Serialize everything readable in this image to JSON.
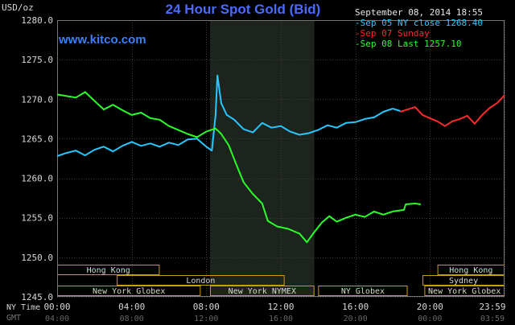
{
  "header": {
    "title": "24 Hour Spot Gold (Bid)",
    "brand": "www.kitco.com",
    "unit": "USD/oz",
    "timestamp": "September 08, 2014 18:55"
  },
  "legend": [
    {
      "text": "-Sep 05 NY close 1268.40",
      "color": "#28c8ff"
    },
    {
      "text": "-Sep 07 Sunday",
      "color": "#ff2a2a"
    },
    {
      "text": "-Sep 08 Last 1257.10",
      "color": "#2aff2a"
    }
  ],
  "timezones": {
    "ny_label": "NY Time",
    "gmt_label": "GMT"
  },
  "chart_data": {
    "type": "line",
    "xlabel": "",
    "ylabel": "USD/oz",
    "ylim": [
      1245,
      1280
    ],
    "xlim": [
      0,
      24
    ],
    "yticks": [
      "1245.0",
      "1250.0",
      "1255.0",
      "1260.0",
      "1265.0",
      "1270.0",
      "1275.0",
      "1280.0"
    ],
    "xticks_ny": [
      {
        "x": 0,
        "label": "00:00"
      },
      {
        "x": 4,
        "label": "04:00"
      },
      {
        "x": 8,
        "label": "08:00"
      },
      {
        "x": 12,
        "label": "12:00"
      },
      {
        "x": 16,
        "label": "16:00"
      },
      {
        "x": 20,
        "label": "20:00"
      },
      {
        "x": 23.98,
        "label": "23:59"
      }
    ],
    "xticks_gmt": [
      {
        "x": 0,
        "label": "04:00"
      },
      {
        "x": 4,
        "label": "08:00"
      },
      {
        "x": 8,
        "label": "12:00"
      },
      {
        "x": 12,
        "label": "16:00"
      },
      {
        "x": 16,
        "label": "20:00"
      },
      {
        "x": 20,
        "label": "00:00"
      },
      {
        "x": 23.98,
        "label": "03:59"
      }
    ],
    "grid": true,
    "highlight_range": [
      8.2,
      13.8
    ],
    "series": [
      {
        "color": "#28c8ff",
        "points": [
          [
            0,
            1262.8
          ],
          [
            0.5,
            1263.2
          ],
          [
            1,
            1263.5
          ],
          [
            1.5,
            1262.9
          ],
          [
            2,
            1263.6
          ],
          [
            2.5,
            1264.0
          ],
          [
            3,
            1263.4
          ],
          [
            3.5,
            1264.1
          ],
          [
            4,
            1264.6
          ],
          [
            4.5,
            1264.1
          ],
          [
            5,
            1264.4
          ],
          [
            5.5,
            1264.0
          ],
          [
            6,
            1264.5
          ],
          [
            6.5,
            1264.2
          ],
          [
            7,
            1264.9
          ],
          [
            7.5,
            1265.0
          ],
          [
            8,
            1264.0
          ],
          [
            8.3,
            1263.5
          ],
          [
            8.5,
            1268.0
          ],
          [
            8.6,
            1273.0
          ],
          [
            8.8,
            1269.5
          ],
          [
            9.1,
            1268.0
          ],
          [
            9.5,
            1267.4
          ],
          [
            10,
            1266.2
          ],
          [
            10.5,
            1265.8
          ],
          [
            11,
            1267.0
          ],
          [
            11.5,
            1266.4
          ],
          [
            12,
            1266.6
          ],
          [
            12.5,
            1265.9
          ],
          [
            13,
            1265.5
          ],
          [
            13.5,
            1265.7
          ],
          [
            14,
            1266.1
          ],
          [
            14.5,
            1266.7
          ],
          [
            15,
            1266.4
          ],
          [
            15.5,
            1267.0
          ],
          [
            16,
            1267.1
          ],
          [
            16.5,
            1267.5
          ],
          [
            17,
            1267.7
          ],
          [
            17.5,
            1268.4
          ],
          [
            18,
            1268.8
          ],
          [
            18.4,
            1268.5
          ]
        ]
      },
      {
        "color": "#ff2a2a",
        "points": [
          [
            18.4,
            1268.4
          ],
          [
            18.8,
            1268.7
          ],
          [
            19.2,
            1269.0
          ],
          [
            19.6,
            1268.0
          ],
          [
            20,
            1267.6
          ],
          [
            20.4,
            1267.2
          ],
          [
            20.8,
            1266.6
          ],
          [
            21.2,
            1267.2
          ],
          [
            21.6,
            1267.5
          ],
          [
            22,
            1267.9
          ],
          [
            22.4,
            1266.9
          ],
          [
            22.8,
            1268.0
          ],
          [
            23.2,
            1268.9
          ],
          [
            23.6,
            1269.5
          ],
          [
            24,
            1270.5
          ]
        ]
      },
      {
        "color": "#2aff2a",
        "points": [
          [
            0,
            1270.6
          ],
          [
            0.5,
            1270.4
          ],
          [
            1,
            1270.2
          ],
          [
            1.5,
            1270.9
          ],
          [
            2,
            1269.8
          ],
          [
            2.5,
            1268.7
          ],
          [
            3,
            1269.3
          ],
          [
            3.5,
            1268.6
          ],
          [
            4,
            1268.0
          ],
          [
            4.5,
            1268.3
          ],
          [
            5,
            1267.6
          ],
          [
            5.5,
            1267.4
          ],
          [
            6,
            1266.6
          ],
          [
            6.5,
            1266.1
          ],
          [
            7,
            1265.6
          ],
          [
            7.5,
            1265.2
          ],
          [
            8,
            1265.9
          ],
          [
            8.5,
            1266.3
          ],
          [
            8.8,
            1265.6
          ],
          [
            9.2,
            1264.2
          ],
          [
            9.6,
            1261.8
          ],
          [
            10,
            1259.5
          ],
          [
            10.5,
            1258.0
          ],
          [
            11,
            1256.8
          ],
          [
            11.3,
            1254.6
          ],
          [
            11.8,
            1253.9
          ],
          [
            12.4,
            1253.6
          ],
          [
            13,
            1253.0
          ],
          [
            13.4,
            1251.9
          ],
          [
            13.8,
            1253.2
          ],
          [
            14.2,
            1254.4
          ],
          [
            14.6,
            1255.2
          ],
          [
            15,
            1254.5
          ],
          [
            15.5,
            1255.0
          ],
          [
            16,
            1255.4
          ],
          [
            16.5,
            1255.1
          ],
          [
            17,
            1255.8
          ],
          [
            17.5,
            1255.4
          ],
          [
            18,
            1255.8
          ],
          [
            18.6,
            1256.0
          ],
          [
            18.7,
            1256.7
          ],
          [
            19.2,
            1256.8
          ],
          [
            19.5,
            1256.7
          ]
        ]
      }
    ]
  },
  "sessions": {
    "row1": [
      {
        "label": "Hong Kong",
        "start": -1,
        "end": 5.5
      },
      {
        "label": "Hong Kong",
        "start": 20.4,
        "end": 26
      }
    ],
    "row2": [
      {
        "label": "London",
        "start": 3.2,
        "end": 12.2
      },
      {
        "label": "Sydney",
        "start": 19.6,
        "end": 26
      }
    ],
    "row3": [
      {
        "label": "New York Globex",
        "start": -1,
        "end": 7.7
      },
      {
        "label": "New York NYMEX",
        "start": 8.2,
        "end": 13.8
      },
      {
        "label": "NY Globex",
        "start": 14,
        "end": 18.8
      },
      {
        "label": "New York Globex",
        "start": 19.7,
        "end": 26
      }
    ]
  }
}
